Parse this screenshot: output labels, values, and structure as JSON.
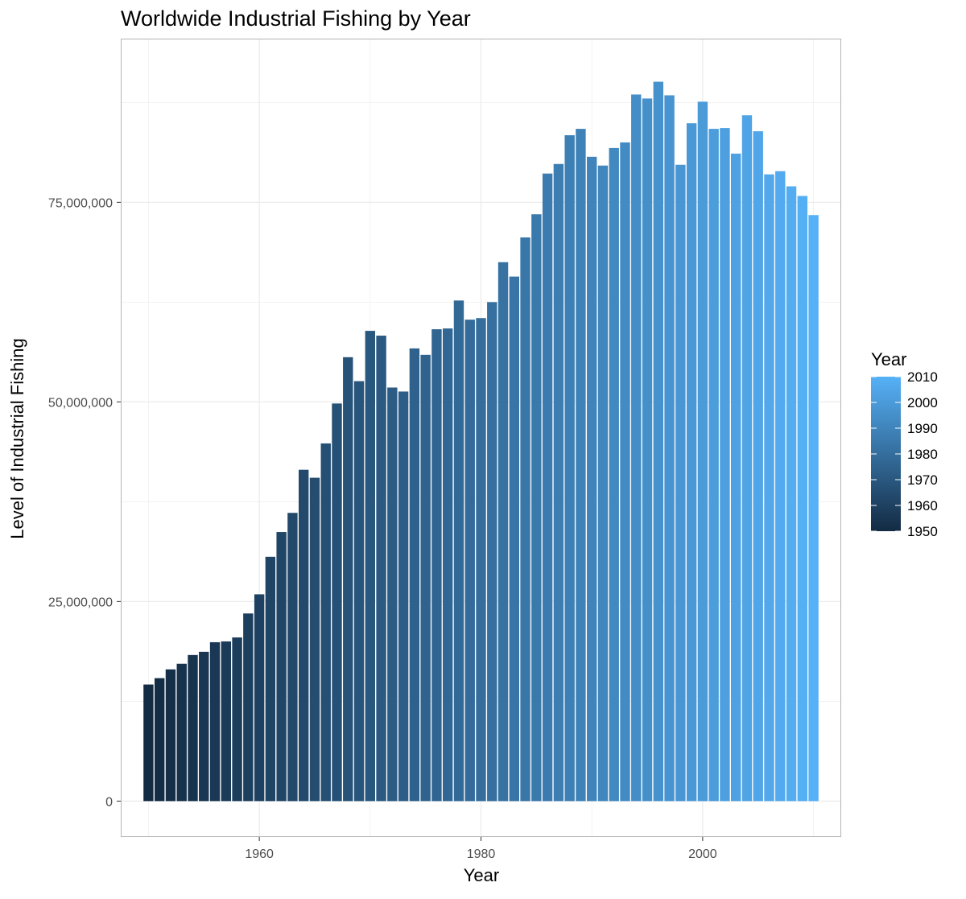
{
  "chart_data": {
    "type": "bar",
    "title": "Worldwide Industrial Fishing by Year",
    "xlabel": "Year",
    "ylabel": "Level of Industrial Fishing",
    "xlim": [
      1947.5,
      2012.5
    ],
    "ylim": [
      -4500000,
      95500000
    ],
    "x_ticks": [
      1960,
      1980,
      2000
    ],
    "x_tick_labels": [
      "1960",
      "1980",
      "2000"
    ],
    "y_ticks": [
      0,
      25000000,
      50000000,
      75000000
    ],
    "y_tick_labels": [
      "0",
      "25,000,000",
      "50,000,000",
      "75,000,000"
    ],
    "grid": true,
    "legend": {
      "title": "Year",
      "placement": "right",
      "type": "colorbar",
      "labels": [
        "2010",
        "2000",
        "1990",
        "1980",
        "1970",
        "1960",
        "1950"
      ],
      "values": [
        2010,
        2000,
        1990,
        1980,
        1970,
        1960,
        1950
      ],
      "color_low": "#132b43",
      "color_high": "#56b1f7"
    },
    "colors": {
      "low": "#132b43",
      "high": "#56b1f7",
      "grid": "#ebebeb",
      "panel_border": "#b3b3b3"
    },
    "x": [
      1950,
      1951,
      1952,
      1953,
      1954,
      1955,
      1956,
      1957,
      1958,
      1959,
      1960,
      1961,
      1962,
      1963,
      1964,
      1965,
      1966,
      1967,
      1968,
      1969,
      1970,
      1971,
      1972,
      1973,
      1974,
      1975,
      1976,
      1977,
      1978,
      1979,
      1980,
      1981,
      1982,
      1983,
      1984,
      1985,
      1986,
      1987,
      1988,
      1989,
      1990,
      1991,
      1992,
      1993,
      1994,
      1995,
      1996,
      1997,
      1998,
      1999,
      2000,
      2001,
      2002,
      2003,
      2004,
      2005,
      2006,
      2007,
      2008,
      2009,
      2010
    ],
    "values": [
      14600000,
      15400000,
      16500000,
      17200000,
      18300000,
      18700000,
      19900000,
      20000000,
      20500000,
      23500000,
      25900000,
      30600000,
      33700000,
      36100000,
      41500000,
      40500000,
      44800000,
      49800000,
      55600000,
      52600000,
      58900000,
      58300000,
      51800000,
      51300000,
      56700000,
      55900000,
      59100000,
      59200000,
      62700000,
      60300000,
      60500000,
      62500000,
      67500000,
      65700000,
      70600000,
      73500000,
      78600000,
      79800000,
      83400000,
      84200000,
      80700000,
      79600000,
      81800000,
      82500000,
      88500000,
      88000000,
      90100000,
      88400000,
      79700000,
      84900000,
      87600000,
      84200000,
      84300000,
      81100000,
      85900000,
      83900000,
      78500000,
      78900000,
      77000000,
      75800000,
      73400000
    ]
  }
}
